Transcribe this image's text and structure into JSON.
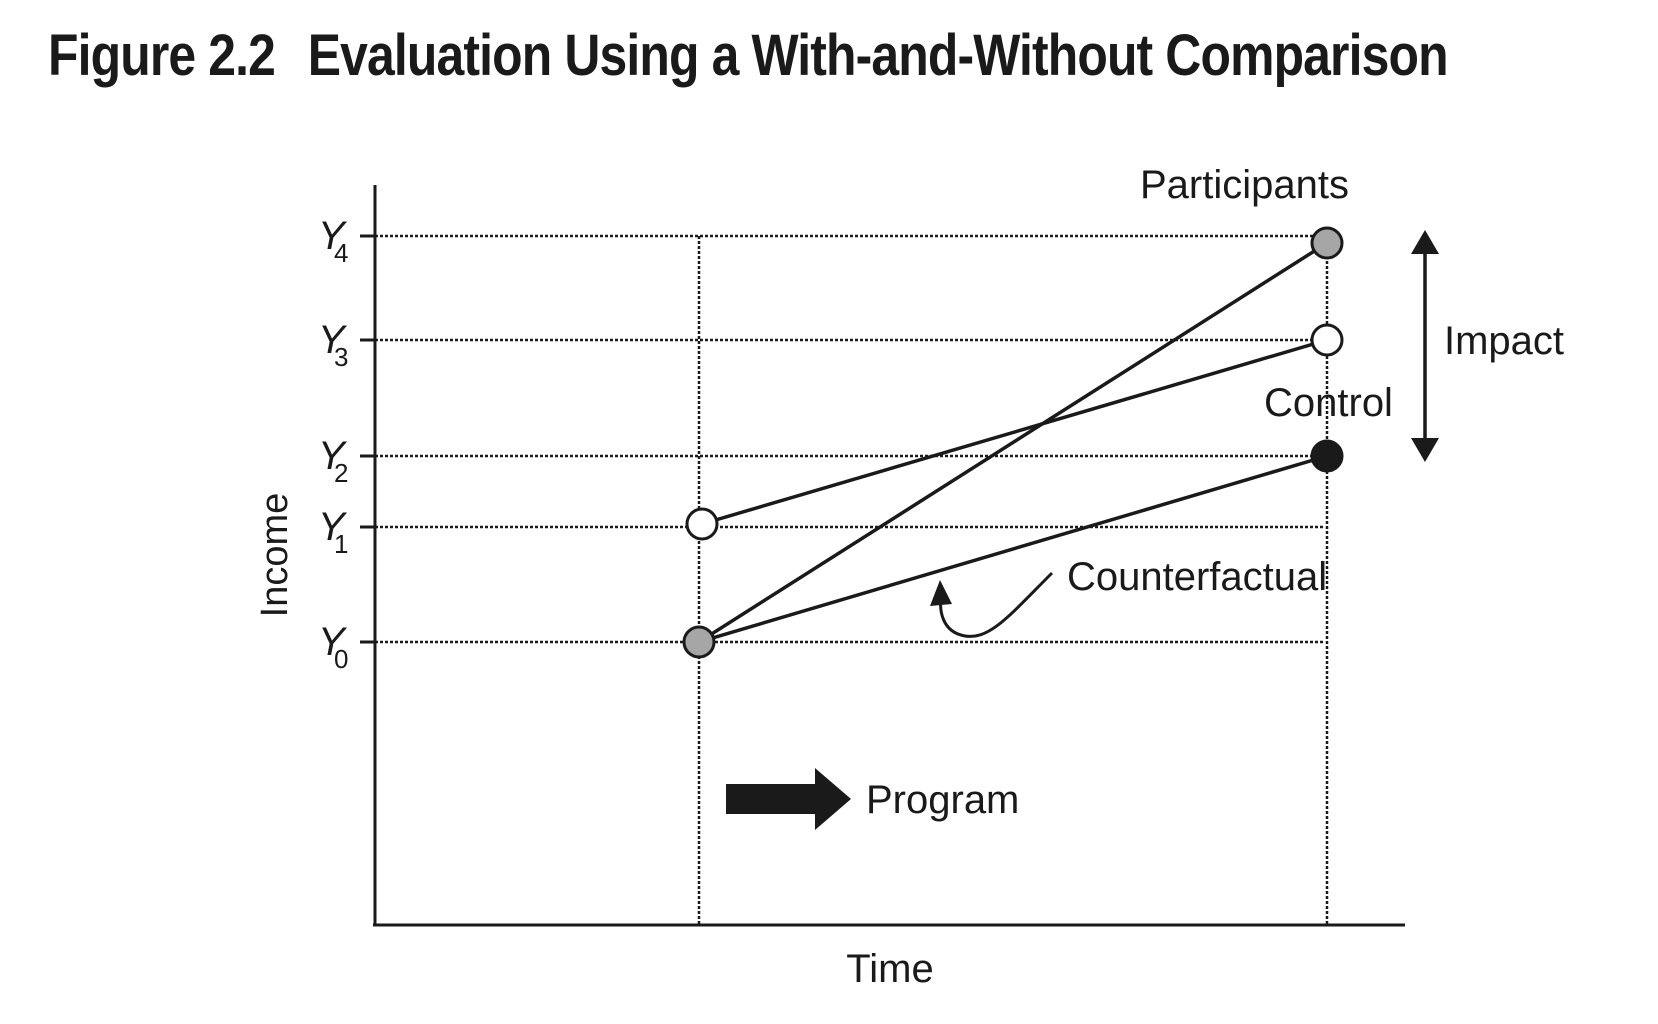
{
  "figure": {
    "number": "Figure 2.2",
    "title": "Evaluation Using a With-and-Without Comparison"
  },
  "axes": {
    "x_label": "Time",
    "y_label": "Income",
    "y_ticks": [
      {
        "letter": "Y",
        "sub": "0"
      },
      {
        "letter": "Y",
        "sub": "1"
      },
      {
        "letter": "Y",
        "sub": "2"
      },
      {
        "letter": "Y",
        "sub": "3"
      },
      {
        "letter": "Y",
        "sub": "4"
      }
    ]
  },
  "labels": {
    "participants": "Participants",
    "control": "Control",
    "counterfactual": "Counterfactual",
    "impact": "Impact",
    "program": "Program"
  },
  "colors": {
    "ink": "#1a1a1a",
    "participant_marker": "#a6a6a6",
    "control_marker": "#ffffff",
    "counterfactual_marker": "#1a1a1a"
  }
}
